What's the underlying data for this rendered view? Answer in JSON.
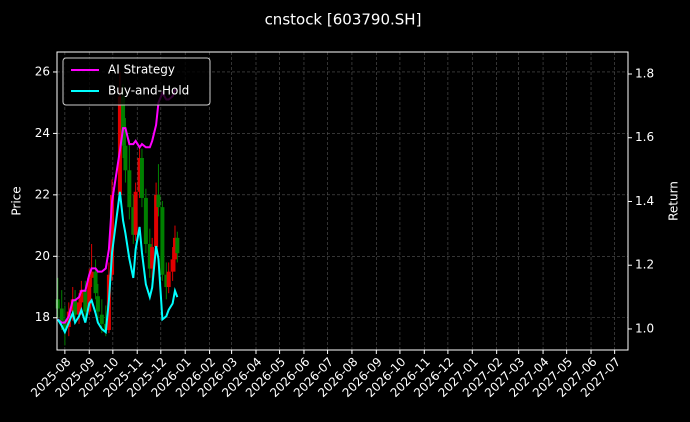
{
  "chart_data": {
    "type": "candlestick",
    "title": "cnstock [603790.SH]",
    "y_label": "Price",
    "y2_label": "Return",
    "x": [
      "2025-07-23",
      "2025-07-28",
      "2025-08-01",
      "2025-08-06",
      "2025-08-11",
      "2025-08-14",
      "2025-08-19",
      "2025-08-22",
      "2025-08-27",
      "2025-09-01",
      "2025-09-04",
      "2025-09-09",
      "2025-09-12",
      "2025-09-17",
      "2025-09-22",
      "2025-09-26",
      "2025-09-30",
      "2025-10-10",
      "2025-10-14",
      "2025-10-17",
      "2025-10-22",
      "2025-10-27",
      "2025-10-30",
      "2025-11-04",
      "2025-11-07",
      "2025-11-12",
      "2025-11-17",
      "2025-11-20",
      "2025-11-25",
      "2025-11-28",
      "2025-12-03",
      "2025-12-08",
      "2025-12-11",
      "2025-12-16",
      "2025-12-19",
      "2025-12-22"
    ],
    "open": [
      18.6,
      18.3,
      17.9,
      17.7,
      18.2,
      18.6,
      18.1,
      18.5,
      18.9,
      18.2,
      19.3,
      19.5,
      18.7,
      18.1,
      17.8,
      17.6,
      19.4,
      22.0,
      25.2,
      23.6,
      22.8,
      21.6,
      20.7,
      22.1,
      23.2,
      21.9,
      20.4,
      19.6,
      20.3,
      22.0,
      21.6,
      19.4,
      19.0,
      19.5,
      19.9,
      20.6
    ],
    "high": [
      19.3,
      18.9,
      18.4,
      18.5,
      19.0,
      18.9,
      18.8,
      19.2,
      19.2,
      19.6,
      20.4,
      19.9,
      19.1,
      18.6,
      18.4,
      19.8,
      22.5,
      26.0,
      25.6,
      24.5,
      23.8,
      22.0,
      22.4,
      23.6,
      23.5,
      22.2,
      20.9,
      20.6,
      22.4,
      23.0,
      21.8,
      19.8,
      19.8,
      20.3,
      21.0,
      20.8
    ],
    "low": [
      18.0,
      17.6,
      17.1,
      17.4,
      17.9,
      17.9,
      17.8,
      18.1,
      18.0,
      18.1,
      19.0,
      18.6,
      17.9,
      17.5,
      17.4,
      17.5,
      19.2,
      21.8,
      23.2,
      22.4,
      21.2,
      20.4,
      20.5,
      21.9,
      21.6,
      20.1,
      19.3,
      19.2,
      20.1,
      21.3,
      19.2,
      18.6,
      18.8,
      19.2,
      19.5,
      19.8
    ],
    "close": [
      18.3,
      17.9,
      17.6,
      18.2,
      18.6,
      18.1,
      18.5,
      18.9,
      18.2,
      19.3,
      19.5,
      18.8,
      18.2,
      17.8,
      17.6,
      19.4,
      22.0,
      25.2,
      23.6,
      22.8,
      21.6,
      20.7,
      22.1,
      23.2,
      21.9,
      20.4,
      19.6,
      20.3,
      22.0,
      21.6,
      19.4,
      19.0,
      19.5,
      19.9,
      20.6,
      20.1
    ],
    "up_color": "#e00000",
    "down_color": "#008000",
    "series": [
      {
        "name": "AI Strategy",
        "color": "#ff00ff",
        "axis": "y2",
        "values": [
          1.03,
          1.02,
          1.02,
          1.04,
          1.09,
          1.09,
          1.1,
          1.12,
          1.12,
          1.17,
          1.19,
          1.19,
          1.18,
          1.18,
          1.19,
          1.25,
          1.4,
          1.56,
          1.63,
          1.63,
          1.58,
          1.58,
          1.59,
          1.57,
          1.58,
          1.57,
          1.57,
          1.59,
          1.64,
          1.71,
          1.74,
          1.72,
          1.72,
          1.73,
          1.75,
          1.75
        ]
      },
      {
        "name": "Buy-and-Hold",
        "color": "#00ffff",
        "axis": "y2",
        "values": [
          1.03,
          1.01,
          0.99,
          1.02,
          1.05,
          1.02,
          1.04,
          1.06,
          1.02,
          1.08,
          1.09,
          1.05,
          1.02,
          1.0,
          0.99,
          1.09,
          1.24,
          1.43,
          1.34,
          1.3,
          1.22,
          1.16,
          1.25,
          1.32,
          1.24,
          1.14,
          1.1,
          1.13,
          1.26,
          1.22,
          1.03,
          1.04,
          1.06,
          1.08,
          1.12,
          1.1
        ]
      }
    ],
    "xlim": [
      "2025-07-22",
      "2027-07-18"
    ],
    "xticks": [
      "2025-08",
      "2025-09",
      "2025-10",
      "2025-11",
      "2025-12",
      "2026-01",
      "2026-02",
      "2026-03",
      "2026-04",
      "2026-05",
      "2026-06",
      "2026-07",
      "2026-08",
      "2026-09",
      "2026-10",
      "2026-11",
      "2026-12",
      "2027-01",
      "2027-02",
      "2027-03",
      "2027-04",
      "2027-05",
      "2027-06",
      "2027-07"
    ],
    "ylim": [
      16.95,
      26.65
    ],
    "yticks": [
      18,
      20,
      22,
      24,
      26
    ],
    "y2lim": [
      0.934,
      1.869
    ],
    "y2ticks": [
      {
        "value": 1.0,
        "label": "1.0"
      },
      1.2,
      1.4,
      1.6,
      1.8
    ],
    "grid": true,
    "legend": "upper left"
  }
}
